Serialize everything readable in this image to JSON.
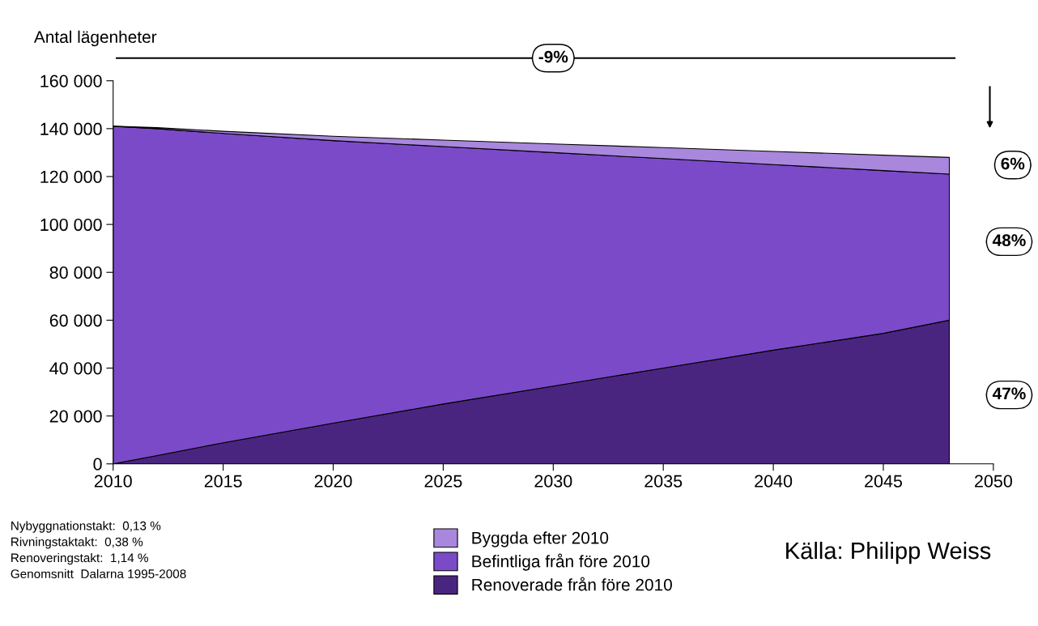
{
  "chart_data": {
    "type": "area",
    "stacked": true,
    "ylabel": "Antal lägenheter",
    "x": [
      2010,
      2012,
      2015,
      2020,
      2025,
      2030,
      2035,
      2040,
      2045,
      2048
    ],
    "series": [
      {
        "name": "Renoverade från före 2010",
        "color": "#4a2580",
        "values": [
          0,
          3500,
          8800,
          17000,
          25000,
          32500,
          40000,
          47500,
          54500,
          60000
        ]
      },
      {
        "name": "Befintliga från före 2010",
        "color": "#7b4ac8",
        "values": [
          141000,
          136500,
          129200,
          118000,
          107500,
          97500,
          87500,
          77500,
          68000,
          61000
        ]
      },
      {
        "name": "Byggda efter 2010",
        "color": "#a887dc",
        "values": [
          0,
          400,
          900,
          1800,
          2700,
          3600,
          4600,
          5500,
          6400,
          7000
        ]
      }
    ],
    "xlim": [
      2010,
      2050
    ],
    "xticks": [
      2010,
      2015,
      2020,
      2025,
      2030,
      2035,
      2040,
      2045,
      2050
    ],
    "ylim": [
      0,
      160000
    ],
    "yticks": [
      {
        "value": 0,
        "label": "0"
      },
      {
        "value": 20000,
        "label": "20 000"
      },
      {
        "value": 40000,
        "label": "40 000"
      },
      {
        "value": 60000,
        "label": "60 000"
      },
      {
        "value": 80000,
        "label": "80 000"
      },
      {
        "value": 100000,
        "label": "100 000"
      },
      {
        "value": 120000,
        "label": "120 000"
      },
      {
        "value": 140000,
        "label": "140 000"
      },
      {
        "value": 160000,
        "label": "160 000"
      }
    ],
    "grid": false,
    "legend": "bottom",
    "annotations": [
      "-9%",
      "6%",
      "48%",
      "47%",
      "Nybyggnationstakt:  0,13 %\nRivningstaktakt:  0,38 %\nRenoveringstakt:  1,14 %\nGenomsnitt  Dalarna 1995-2008",
      "Källa: Philipp Weiss"
    ]
  }
}
